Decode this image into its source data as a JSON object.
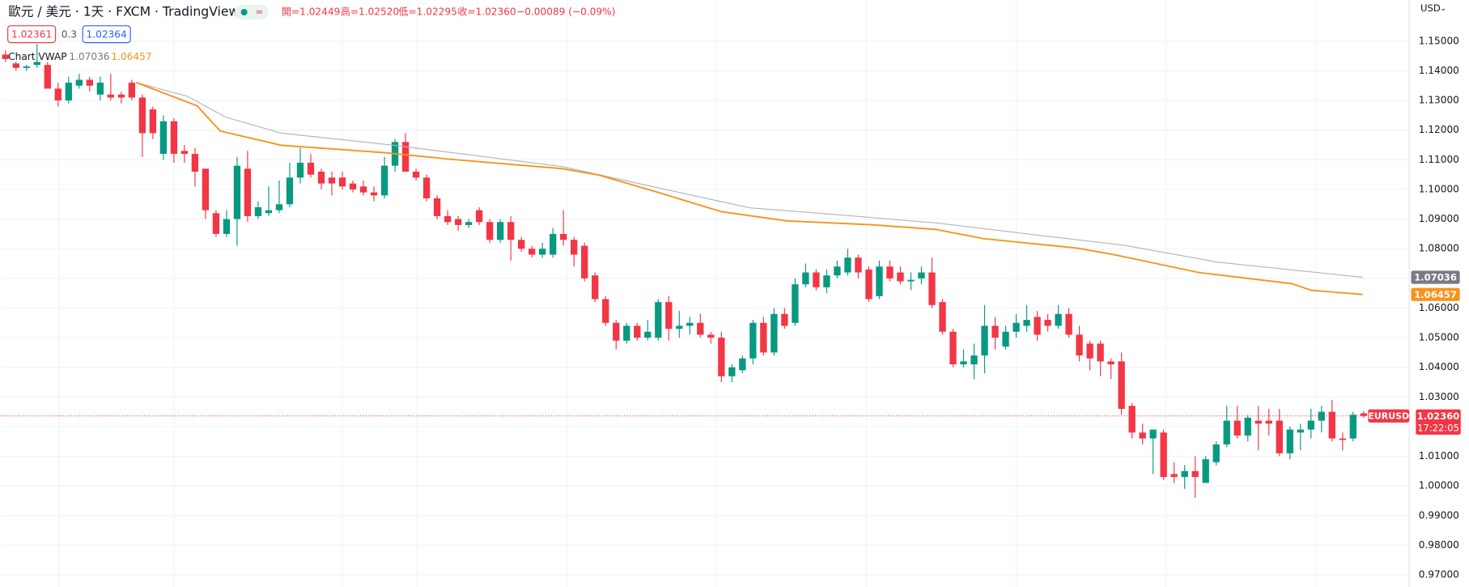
{
  "chart_data": {
    "type": "candlestick",
    "title": "歐元 / 美元 · 1天 · FXCM · TradingView",
    "ohlc_header": [
      "開=1.02449",
      "高=1.02520",
      "低=1.02295",
      "收=1.02360",
      "−0.00089 (−0.09%)"
    ],
    "quote": {
      "bid": "1.02361",
      "spread": "0.3",
      "ask": "1.02364"
    },
    "currency": "USD",
    "symbol": "EURUSD",
    "countdown": "17:22:05",
    "last_price": {
      "value": 1.0236,
      "label": "1.02360"
    },
    "up_color": "#089981",
    "down_color": "#f23645",
    "open": [
      1.1455,
      1.1425,
      1.141,
      1.142,
      1.142,
      1.134,
      1.13,
      1.135,
      1.137,
      1.132,
      1.132,
      1.132,
      1.136,
      1.131,
      1.127,
      1.112,
      1.123,
      1.113,
      1.112,
      1.107,
      1.092,
      1.085,
      1.09,
      1.107,
      1.091,
      1.092,
      1.093,
      1.095,
      1.104,
      1.109,
      1.106,
      1.104,
      1.104,
      1.102,
      1.101,
      1.099,
      1.098,
      1.108,
      1.116,
      1.106,
      1.104,
      1.097,
      1.091,
      1.09,
      1.088,
      1.093,
      1.089,
      1.083,
      1.089,
      1.083,
      1.08,
      1.078,
      1.078,
      1.085,
      1.083,
      1.081,
      1.071,
      1.063,
      1.055,
      1.049,
      1.054,
      1.05,
      1.05,
      1.062,
      1.053,
      1.054,
      1.055,
      1.051,
      1.05,
      1.037,
      1.039,
      1.043,
      1.055,
      1.045,
      1.058,
      1.055,
      1.068,
      1.072,
      1.067,
      1.071,
      1.072,
      1.077,
      1.073,
      1.064,
      1.074,
      1.072,
      1.069,
      1.07,
      1.072,
      1.062,
      1.052,
      1.041,
      1.041,
      1.044,
      1.054,
      1.047,
      1.052,
      1.054,
      1.057,
      1.056,
      1.054,
      1.058,
      1.051,
      1.048,
      1.048,
      1.042,
      1.042,
      1.027,
      1.018,
      1.016,
      1.018,
      1.004,
      1.003,
      1.005,
      1.001,
      1.008,
      1.014,
      1.022,
      1.017,
      1.022,
      1.022,
      1.022,
      1.011,
      1.018,
      1.019,
      1.022,
      1.025,
      1.016,
      1.016,
      1.02449
    ],
    "high": [
      1.147,
      1.143,
      1.142,
      1.149,
      1.143,
      1.136,
      1.138,
      1.139,
      1.138,
      1.138,
      1.139,
      1.133,
      1.137,
      1.132,
      1.128,
      1.125,
      1.124,
      1.115,
      1.114,
      1.107,
      1.093,
      1.093,
      1.111,
      1.113,
      1.096,
      1.101,
      1.103,
      1.109,
      1.114,
      1.112,
      1.107,
      1.106,
      1.106,
      1.103,
      1.103,
      1.101,
      1.111,
      1.117,
      1.119,
      1.107,
      1.105,
      1.098,
      1.093,
      1.091,
      1.09,
      1.094,
      1.09,
      1.09,
      1.091,
      1.084,
      1.081,
      1.082,
      1.087,
      1.093,
      1.084,
      1.082,
      1.072,
      1.064,
      1.056,
      1.055,
      1.055,
      1.056,
      1.063,
      1.064,
      1.059,
      1.057,
      1.058,
      1.052,
      1.052,
      1.041,
      1.044,
      1.056,
      1.057,
      1.06,
      1.06,
      1.07,
      1.075,
      1.073,
      1.073,
      1.076,
      1.08,
      1.078,
      1.074,
      1.076,
      1.076,
      1.074,
      1.072,
      1.074,
      1.077,
      1.063,
      1.053,
      1.046,
      1.048,
      1.061,
      1.057,
      1.054,
      1.058,
      1.061,
      1.059,
      1.058,
      1.061,
      1.06,
      1.054,
      1.049,
      1.049,
      1.043,
      1.045,
      1.028,
      1.021,
      1.019,
      1.019,
      1.008,
      1.007,
      1.01,
      1.01,
      1.015,
      1.027,
      1.027,
      1.024,
      1.027,
      1.026,
      1.026,
      1.02,
      1.021,
      1.026,
      1.027,
      1.029,
      1.018,
      1.025,
      1.0252
    ],
    "low": [
      1.143,
      1.14,
      1.14,
      1.141,
      1.134,
      1.128,
      1.129,
      1.134,
      1.133,
      1.13,
      1.13,
      1.129,
      1.13,
      1.111,
      1.117,
      1.11,
      1.109,
      1.109,
      1.101,
      1.09,
      1.084,
      1.084,
      1.081,
      1.089,
      1.09,
      1.091,
      1.092,
      1.094,
      1.102,
      1.104,
      1.1,
      1.098,
      1.1,
      1.099,
      1.098,
      1.096,
      1.097,
      1.106,
      1.106,
      1.103,
      1.096,
      1.09,
      1.088,
      1.086,
      1.087,
      1.088,
      1.082,
      1.082,
      1.076,
      1.079,
      1.077,
      1.077,
      1.077,
      1.081,
      1.074,
      1.069,
      1.062,
      1.054,
      1.046,
      1.048,
      1.049,
      1.049,
      1.049,
      1.049,
      1.05,
      1.051,
      1.05,
      1.048,
      1.035,
      1.035,
      1.038,
      1.041,
      1.044,
      1.044,
      1.053,
      1.054,
      1.067,
      1.066,
      1.065,
      1.07,
      1.071,
      1.07,
      1.062,
      1.063,
      1.069,
      1.068,
      1.066,
      1.068,
      1.06,
      1.051,
      1.04,
      1.04,
      1.036,
      1.038,
      1.046,
      1.046,
      1.05,
      1.052,
      1.049,
      1.052,
      1.053,
      1.05,
      1.042,
      1.039,
      1.037,
      1.036,
      1.024,
      1.016,
      1.014,
      1.004,
      1.002,
      1.001,
      0.999,
      0.996,
      1.001,
      1.007,
      1.013,
      1.016,
      1.015,
      1.012,
      1.017,
      1.01,
      1.009,
      1.012,
      1.016,
      1.018,
      1.015,
      1.012,
      1.015,
      1.02295
    ],
    "close": [
      1.144,
      1.141,
      1.1415,
      1.143,
      1.134,
      1.13,
      1.136,
      1.137,
      1.135,
      1.136,
      1.131,
      1.131,
      1.131,
      1.119,
      1.119,
      1.123,
      1.112,
      1.112,
      1.106,
      1.093,
      1.085,
      1.09,
      1.108,
      1.091,
      1.094,
      1.093,
      1.095,
      1.104,
      1.109,
      1.105,
      1.102,
      1.102,
      1.101,
      1.1,
      1.099,
      1.098,
      1.108,
      1.116,
      1.106,
      1.104,
      1.097,
      1.091,
      1.089,
      1.088,
      1.089,
      1.089,
      1.083,
      1.089,
      1.083,
      1.08,
      1.078,
      1.08,
      1.085,
      1.083,
      1.078,
      1.07,
      1.063,
      1.055,
      1.049,
      1.054,
      1.05,
      1.052,
      1.062,
      1.053,
      1.054,
      1.055,
      1.051,
      1.05,
      1.037,
      1.04,
      1.043,
      1.055,
      1.045,
      1.058,
      1.054,
      1.068,
      1.072,
      1.067,
      1.071,
      1.074,
      1.077,
      1.072,
      1.063,
      1.074,
      1.07,
      1.069,
      1.0695,
      1.072,
      1.061,
      1.052,
      1.041,
      1.042,
      1.044,
      1.054,
      1.05,
      1.052,
      1.055,
      1.056,
      1.051,
      1.054,
      1.058,
      1.051,
      1.044,
      1.043,
      1.042,
      1.041,
      1.026,
      1.018,
      1.016,
      1.019,
      1.003,
      1.003,
      1.005,
      1.003,
      1.009,
      1.014,
      1.022,
      1.017,
      1.023,
      1.021,
      1.021,
      1.011,
      1.019,
      1.019,
      1.022,
      1.025,
      1.016,
      1.0155,
      1.024,
      1.0236
    ],
    "indicator": {
      "name": "Chart VWAP",
      "lines": [
        {
          "color": "#b2b5be",
          "x": [
            12.4,
            17.3,
            20.9,
            26.2,
            36.9,
            52.9,
            61.8,
            70.7,
            79.6,
            88.4,
            97.3,
            106.2,
            115.1,
            128.9
          ],
          "values": [
            1.1361,
            1.1314,
            1.1244,
            1.119,
            1.1149,
            1.1077,
            1.1007,
            1.0938,
            1.0913,
            1.0887,
            1.0849,
            1.0812,
            1.0755,
            1.07036
          ]
        },
        {
          "color": "#f7931a",
          "x": [
            12.4,
            18.2,
            20.4,
            26.2,
            36,
            42.2,
            52.9,
            56.4,
            61.8,
            68,
            74.2,
            82.2,
            88.4,
            92.9,
            101.8,
            105.3,
            113.3,
            122.2,
            124,
            128.9
          ],
          "values": [
            1.1361,
            1.1282,
            1.1197,
            1.1149,
            1.1124,
            1.1102,
            1.107,
            1.1048,
            1.0992,
            1.0925,
            1.0894,
            1.0881,
            1.0865,
            1.0834,
            1.0802,
            1.078,
            1.072,
            1.0682,
            1.066,
            1.06457
          ]
        }
      ]
    },
    "ylim": [
      0.9659,
      1.1639
    ],
    "yticks": [
      {
        "value": 0.97,
        "label": "0.97000"
      },
      {
        "value": 0.98,
        "label": "0.98000"
      },
      {
        "value": 0.99,
        "label": "0.99000"
      },
      {
        "value": 1.0,
        "label": "1.00000"
      },
      {
        "value": 1.01,
        "label": "1.01000"
      },
      {
        "value": 1.02,
        "label": "1.02000"
      },
      {
        "value": 1.03,
        "label": "1.03000"
      },
      {
        "value": 1.04,
        "label": "1.04000"
      },
      {
        "value": 1.05,
        "label": "1.05000"
      },
      {
        "value": 1.06,
        "label": "1.06000"
      },
      {
        "value": 1.07,
        "label": "1.07000"
      },
      {
        "value": 1.08,
        "label": "1.08000"
      },
      {
        "value": 1.09,
        "label": "1.09000"
      },
      {
        "value": 1.1,
        "label": "1.10000"
      },
      {
        "value": 1.11,
        "label": "1.11000"
      },
      {
        "value": 1.12,
        "label": "1.12000"
      },
      {
        "value": 1.13,
        "label": "1.13000"
      },
      {
        "value": 1.14,
        "label": "1.14000"
      },
      {
        "value": 1.15,
        "label": "1.15000"
      }
    ],
    "grid": true
  }
}
